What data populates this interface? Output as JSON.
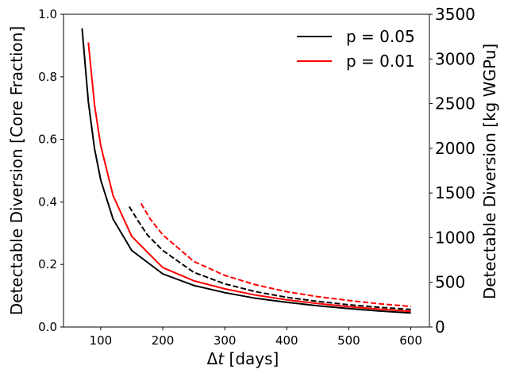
{
  "chart_data": {
    "type": "line",
    "xlabel_prefix": "Δ",
    "xlabel_var": "t",
    "xlabel_suffix": " [days]",
    "ylabel": "Detectable Diversion [Core Fraction]",
    "ylabel_right": "Detectable Diversion [kg WGPu]",
    "xlim": [
      40,
      630
    ],
    "ylim": [
      0,
      1.0
    ],
    "ylim_right": [
      0,
      3500
    ],
    "x_ticks": [
      100,
      200,
      300,
      400,
      500,
      600
    ],
    "y_ticks": [
      "0.0",
      "0.2",
      "0.4",
      "0.6",
      "0.8",
      "1.0"
    ],
    "y_ticks_right": [
      "0",
      "500",
      "1000",
      "1500",
      "2000",
      "2500",
      "3000",
      "3500"
    ],
    "legend": {
      "placement": "top-right",
      "entries": [
        {
          "label": "p = 0.05",
          "color": "#000000"
        },
        {
          "label": "p = 0.01",
          "color": "#ff0000"
        }
      ]
    },
    "series": [
      {
        "color": "#000000",
        "dash": "solid",
        "x": [
          70,
          80,
          90,
          100,
          120,
          150,
          200,
          250,
          300,
          350,
          400,
          450,
          500,
          550,
          600
        ],
        "y": [
          0.955,
          0.72,
          0.57,
          0.47,
          0.345,
          0.245,
          0.17,
          0.133,
          0.11,
          0.092,
          0.079,
          0.068,
          0.059,
          0.051,
          0.045
        ]
      },
      {
        "color": "#ff0000",
        "dash": "solid",
        "x": [
          80,
          90,
          100,
          120,
          150,
          200,
          250,
          300,
          350,
          400,
          450,
          500,
          550,
          600
        ],
        "y": [
          0.91,
          0.71,
          0.58,
          0.42,
          0.29,
          0.19,
          0.148,
          0.122,
          0.102,
          0.087,
          0.075,
          0.065,
          0.057,
          0.05
        ]
      },
      {
        "color": "#000000",
        "dash": "dashed",
        "x": [
          146,
          160,
          175,
          200,
          250,
          300,
          350,
          400,
          450,
          500,
          550,
          600
        ],
        "y": [
          0.385,
          0.34,
          0.295,
          0.245,
          0.175,
          0.138,
          0.113,
          0.095,
          0.082,
          0.071,
          0.063,
          0.056
        ]
      },
      {
        "color": "#ff0000",
        "dash": "dashed",
        "x": [
          165,
          180,
          200,
          250,
          300,
          350,
          400,
          450,
          500,
          550,
          600
        ],
        "y": [
          0.395,
          0.345,
          0.295,
          0.21,
          0.165,
          0.135,
          0.113,
          0.097,
          0.085,
          0.074,
          0.066
        ]
      }
    ]
  }
}
